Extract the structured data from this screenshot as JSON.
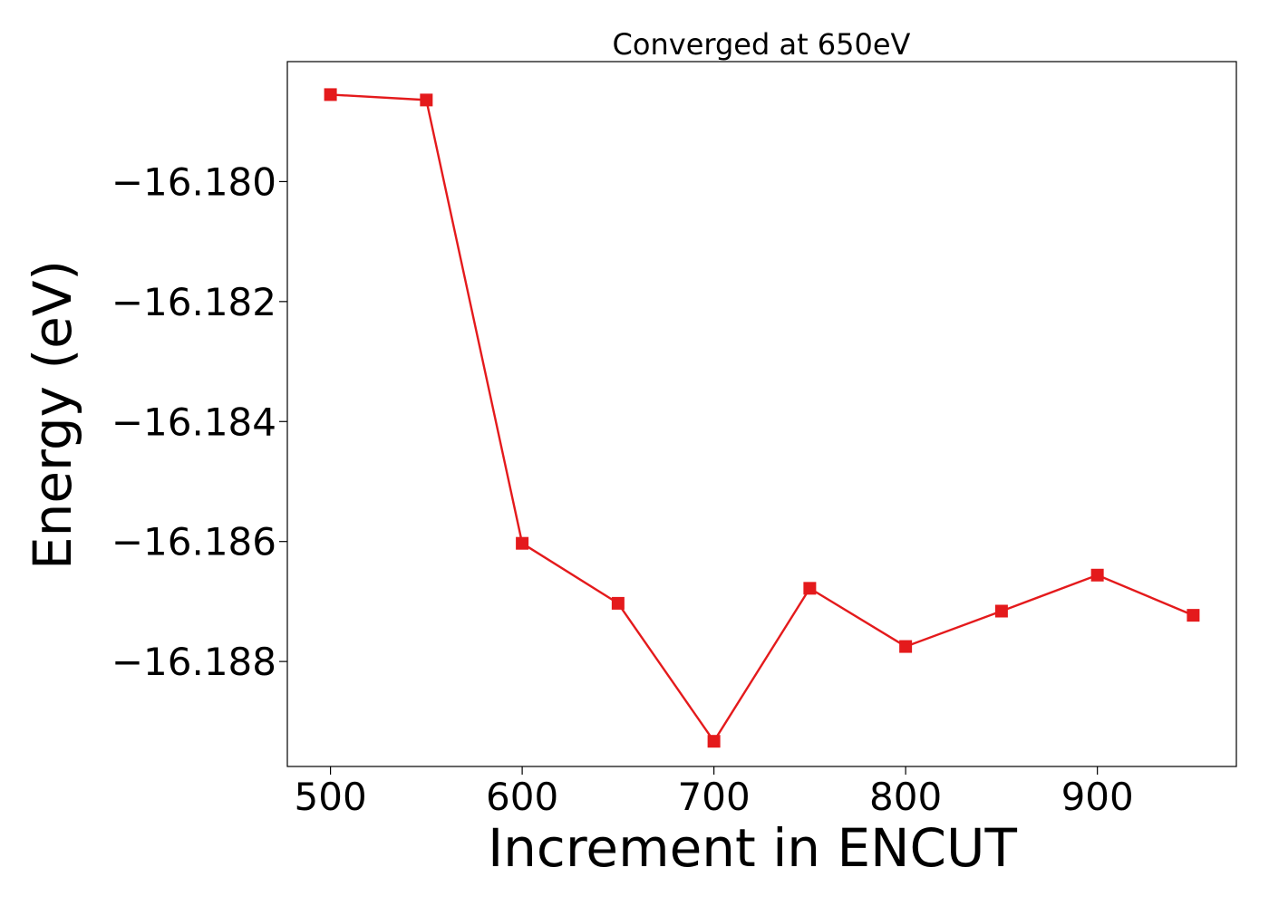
{
  "chart_data": {
    "type": "line",
    "title": "Converged at 650eV",
    "xlabel": "Increment in ENCUT",
    "ylabel": "Energy (eV)",
    "x": [
      500,
      550,
      600,
      650,
      700,
      750,
      800,
      850,
      900,
      950
    ],
    "series": [
      {
        "values": [
          -16.17855,
          -16.17864,
          -16.18603,
          -16.18703,
          -16.18933,
          -16.18678,
          -16.18775,
          -16.18716,
          -16.18656,
          -16.18723
        ],
        "color": "#e41a1c",
        "marker": "square"
      }
    ],
    "xlim": [
      477.5,
      972.5
    ],
    "ylim": [
      -16.18975,
      -16.178
    ],
    "xticks": [
      500,
      600,
      700,
      800,
      900
    ],
    "xtick_labels": [
      "500",
      "600",
      "700",
      "800",
      "900"
    ],
    "yticks": [
      -16.18,
      -16.182,
      -16.184,
      -16.186,
      -16.188
    ],
    "ytick_labels": [
      "−16.180",
      "−16.182",
      "−16.184",
      "−16.186",
      "−16.188"
    ],
    "grid": false,
    "legend": "none"
  }
}
